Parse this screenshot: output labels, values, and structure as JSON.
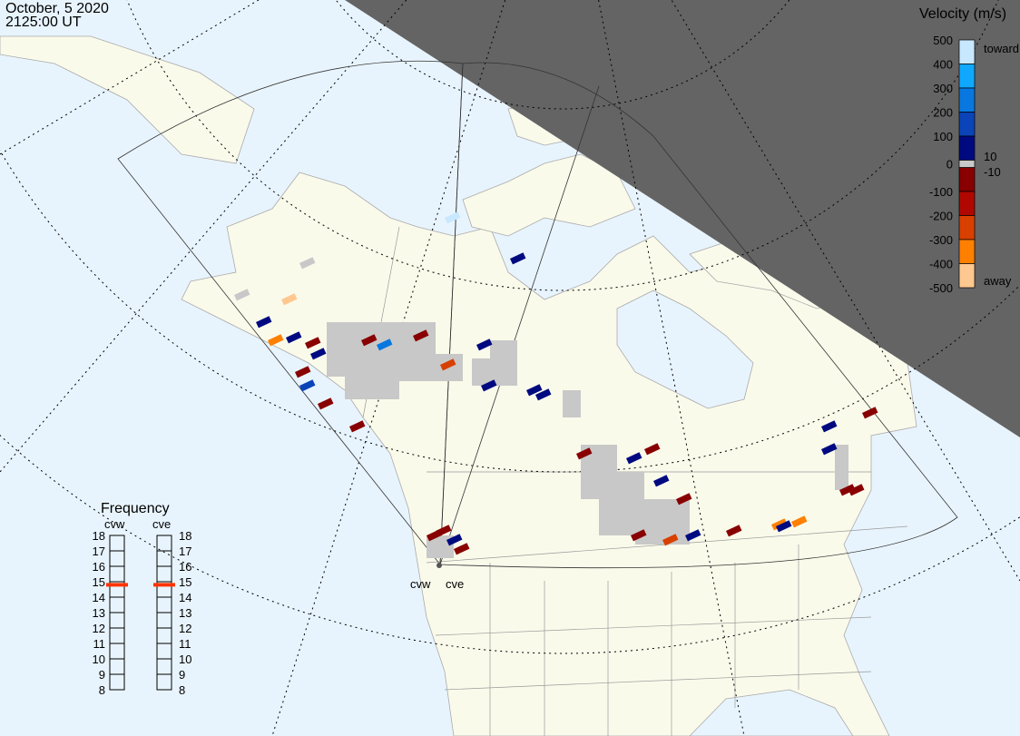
{
  "header": {
    "date": "October, 5 2020",
    "time": "2125:00 UT"
  },
  "radars": [
    {
      "code": "cvw"
    },
    {
      "code": "cve"
    }
  ],
  "colorbar": {
    "title": "Velocity (m/s)",
    "ticks": [
      "500",
      "400",
      "300",
      "200",
      "100",
      "0",
      "-100",
      "-200",
      "-300",
      "-400",
      "-500"
    ],
    "toward_label": "toward",
    "away_label": "away",
    "plus_threshold": "10",
    "minus_threshold": "-10",
    "colors": [
      "#c8e8ff",
      "#10a8ff",
      "#0878e0",
      "#0a44b8",
      "#000a80",
      "#880000",
      "#b00800",
      "#d84000",
      "#ff8000",
      "#ffc890"
    ],
    "ground_scatter_color": "#c8c8c8"
  },
  "frequency": {
    "title": "Frequency",
    "ticks": [
      "18",
      "17",
      "16",
      "15",
      "14",
      "13",
      "12",
      "11",
      "10",
      "9",
      "8"
    ],
    "unit_range_mhz": [
      8,
      18
    ],
    "values_mhz": {
      "cvw": 14.8,
      "cve": 14.8
    },
    "marker_color": "#ff3300"
  },
  "map": {
    "land_color": "#fafaeb",
    "ocean_color": "#e8f4fd",
    "night_color": "#646464"
  }
}
